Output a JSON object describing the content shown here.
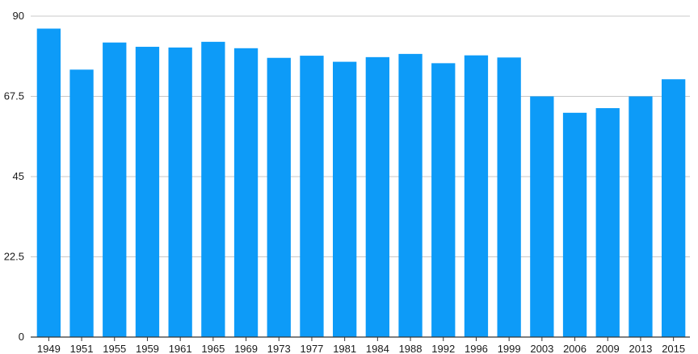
{
  "chart_data": {
    "type": "bar",
    "categories": [
      "1949",
      "1951",
      "1955",
      "1959",
      "1961",
      "1965",
      "1969",
      "1973",
      "1977",
      "1981",
      "1984",
      "1988",
      "1992",
      "1996",
      "1999",
      "2003",
      "2006",
      "2009",
      "2013",
      "2015"
    ],
    "values": [
      86.5,
      75.0,
      82.6,
      81.4,
      81.2,
      82.8,
      81.0,
      78.3,
      78.9,
      77.2,
      78.5,
      79.4,
      76.8,
      79.0,
      78.4,
      67.5,
      62.9,
      64.2,
      67.5,
      72.3
    ],
    "yticks": [
      "0",
      "22.5",
      "45",
      "67.5",
      "90"
    ],
    "ylim": [
      0,
      90
    ],
    "grid": true,
    "bar_color": "#0d9bf8",
    "title": "",
    "xlabel": "",
    "ylabel": ""
  }
}
